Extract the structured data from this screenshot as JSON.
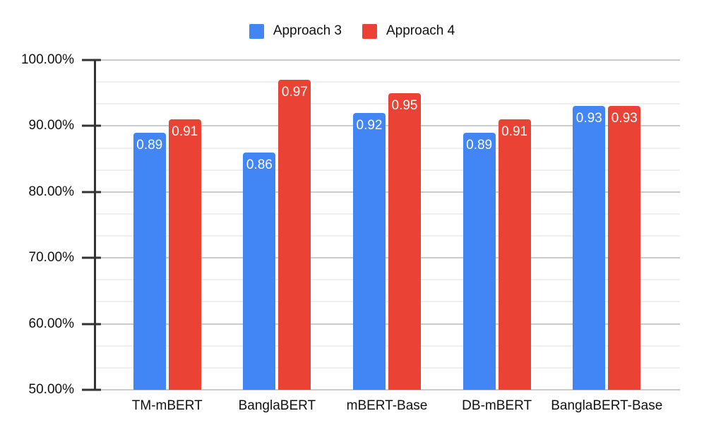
{
  "chart_data": {
    "type": "bar",
    "title": "",
    "legend_position": "top",
    "grid": true,
    "categories": [
      "TM-mBERT",
      "BanglaBERT",
      "mBERT-Base",
      "DB-mBERT",
      "BanglaBERT-Base"
    ],
    "series": [
      {
        "name": "Approach 3",
        "color": "#4285F4",
        "values": [
          0.89,
          0.86,
          0.92,
          0.89,
          0.93
        ],
        "labels": [
          "0.89",
          "0.86",
          "0.92",
          "0.89",
          "0.93"
        ]
      },
      {
        "name": "Approach 4",
        "color": "#EA4335",
        "values": [
          0.91,
          0.97,
          0.95,
          0.91,
          0.93
        ],
        "labels": [
          "0.91",
          "0.97",
          "0.95",
          "0.91",
          "0.93"
        ]
      }
    ],
    "y_axis": {
      "unit": "%",
      "min": 50,
      "max": 100,
      "major_step": 10,
      "minor_per_major": 3,
      "ticks": [
        {
          "value": 100,
          "label": "100.00%"
        },
        {
          "value": 90,
          "label": "90.00%"
        },
        {
          "value": 80,
          "label": "80.00%"
        },
        {
          "value": 70,
          "label": "70.00%"
        },
        {
          "value": 60,
          "label": "60.00%"
        },
        {
          "value": 50,
          "label": "50.00%"
        }
      ]
    },
    "colors": {
      "background": "#ffffff",
      "axis_line": "#333333",
      "major_gridline": "#cccccc",
      "minor_gridline": "#efefef",
      "text": "#111111",
      "bar_label_text": "#ffffff"
    }
  }
}
